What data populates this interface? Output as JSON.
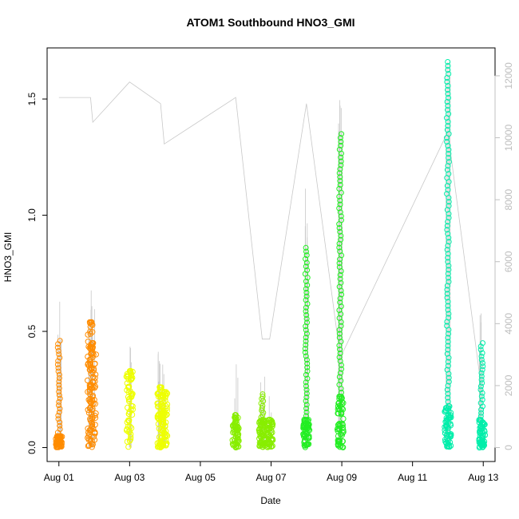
{
  "chart_data": {
    "type": "scatter",
    "title": "ATOM1 Southbound HNO3_GMI",
    "xlabel": "Date",
    "ylabel": "HNO3_GMI",
    "xlim": [
      "2016-07-31T16:00",
      "2016-08-13T08:00"
    ],
    "ylim": [
      -0.06,
      1.72
    ],
    "x_ticks": [
      {
        "date": "2016-08-01",
        "label": "Aug 01"
      },
      {
        "date": "2016-08-03",
        "label": "Aug 03"
      },
      {
        "date": "2016-08-05",
        "label": "Aug 05"
      },
      {
        "date": "2016-08-07",
        "label": "Aug 07"
      },
      {
        "date": "2016-08-09",
        "label": "Aug 09"
      },
      {
        "date": "2016-08-11",
        "label": "Aug 11"
      },
      {
        "date": "2016-08-13",
        "label": "Aug 13"
      }
    ],
    "y_ticks": [
      0.0,
      0.5,
      1.0,
      1.5
    ],
    "y_tick_labels": [
      "0.0",
      "0.5",
      "1.0",
      "1.5"
    ],
    "y2_lim": [
      -450,
      12900
    ],
    "y2_ticks": [
      0,
      2000,
      4000,
      6000,
      8000,
      10000,
      12000
    ],
    "y2_tick_labels": [
      "0",
      "2000",
      "4000",
      "6000",
      "8000",
      "10000",
      "12000"
    ],
    "y2_color": "#c0c0c0",
    "grid": false,
    "marker": "open-circle",
    "series": [
      {
        "color": "#ff8c00",
        "segments": [
          {
            "x": "2016-08-01T00:00",
            "min": 0.01,
            "max": 0.46,
            "dense_lo": 0.0,
            "dense_hi": 0.05,
            "dense_top": 0.46
          },
          {
            "x": "2016-08-01T21:30",
            "min": 0.0,
            "max": 0.54,
            "dense_lo": 0.0,
            "dense_hi": 0.54
          },
          {
            "x": "2016-08-01T23:00",
            "min": 0.0,
            "max": 0.45,
            "dense_lo": 0.0,
            "dense_hi": 0.45
          }
        ]
      },
      {
        "color": "#eeff00",
        "segments": [
          {
            "x": "2016-08-03T00:00",
            "min": 0.0,
            "max": 0.33,
            "dense_lo": 0.0,
            "dense_hi": 0.33
          },
          {
            "x": "2016-08-03T21:00",
            "min": 0.0,
            "max": 0.26,
            "dense_lo": 0.0,
            "dense_hi": 0.26
          },
          {
            "x": "2016-08-03T23:30",
            "min": 0.0,
            "max": 0.24,
            "dense_lo": 0.0,
            "dense_hi": 0.24
          }
        ]
      },
      {
        "color": "#88ee00",
        "segments": [
          {
            "x": "2016-08-06T00:00",
            "min": 0.0,
            "max": 0.14,
            "dense_lo": 0.0,
            "dense_hi": 0.14
          },
          {
            "x": "2016-08-06T18:00",
            "min": 0.0,
            "max": 0.23,
            "dense_lo": 0.0,
            "dense_hi": 0.12
          },
          {
            "x": "2016-08-06T23:00",
            "min": 0.0,
            "max": 0.12,
            "dense_lo": 0.0,
            "dense_hi": 0.12
          }
        ]
      },
      {
        "color": "#22ee22",
        "segments": [
          {
            "x": "2016-08-08T00:00",
            "min": 0.0,
            "max": 0.86,
            "dense_lo": 0.0,
            "dense_hi": 0.12,
            "dense_top": 0.86
          },
          {
            "x": "2016-08-08T23:00",
            "min": 0.0,
            "max": 1.35,
            "dense_lo": 0.0,
            "dense_hi": 0.22,
            "dense_top": 1.35
          }
        ]
      },
      {
        "color": "#00eeaa",
        "segments": [
          {
            "x": "2016-08-12T00:00",
            "min": 0.0,
            "max": 1.66,
            "dense_lo": 0.0,
            "dense_hi": 0.18,
            "dense_top": 1.66
          },
          {
            "x": "2016-08-12T23:00",
            "min": 0.0,
            "max": 0.45,
            "dense_lo": 0.0,
            "dense_hi": 0.12
          }
        ]
      }
    ],
    "y2_series_color": "#c8c8c8"
  }
}
